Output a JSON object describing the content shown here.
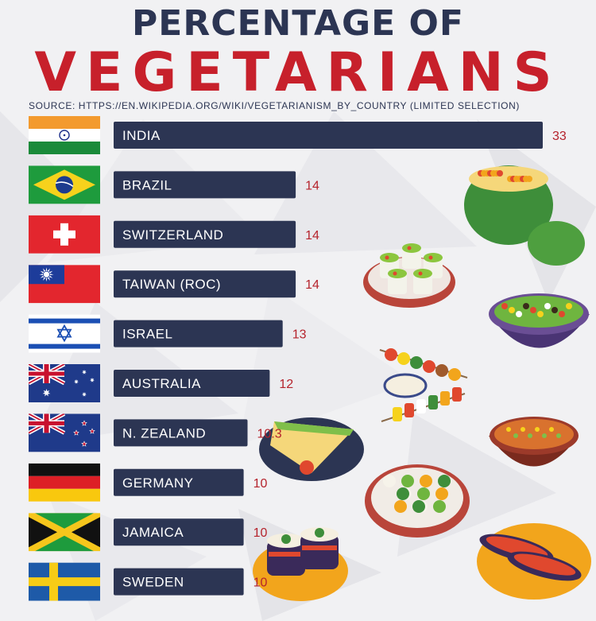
{
  "header": {
    "title_line1": "PERCENTAGE OF",
    "title_line2": "VEGETARIANS",
    "source": "SOURCE: HTTPS://EN.WIKIPEDIA.ORG/WIKI/VEGETARIANISM_BY_COUNTRY (LIMITED SELECTION)"
  },
  "colors": {
    "bar": "#2c3553",
    "value_text": "#b5232c",
    "title_dark": "#2c3553",
    "title_red": "#c7202b"
  },
  "chart_data": {
    "type": "bar",
    "orientation": "horizontal",
    "title": "PERCENTAGE OF VEGETARIANS",
    "xlabel": "",
    "ylabel": "",
    "categories": [
      "INDIA",
      "BRAZIL",
      "SWITZERLAND",
      "TAIWAN (ROC)",
      "ISRAEL",
      "AUSTRALIA",
      "N. ZEALAND",
      "GERMANY",
      "JAMAICA",
      "SWEDEN"
    ],
    "values": [
      33,
      14,
      14,
      14,
      13,
      12,
      10.3,
      10,
      10,
      10
    ],
    "value_labels": [
      "33",
      "14",
      "14",
      "14",
      "13",
      "12",
      "10.3",
      "10",
      "10",
      "10"
    ],
    "flags": [
      "india-flag-icon",
      "brazil-flag-icon",
      "switzerland-flag-icon",
      "taiwan-flag-icon",
      "israel-flag-icon",
      "australia-flag-icon",
      "new-zealand-flag-icon",
      "germany-flag-icon",
      "jamaica-flag-icon",
      "sweden-flag-icon"
    ],
    "grid": false,
    "legend": "none"
  },
  "food_icons": [
    "pumpkin-bowl-icon",
    "vegetable-rolls-icon",
    "salad-bowl-icon",
    "kebab-skewers-icon",
    "quiche-slice-icon",
    "soup-bowl-icon",
    "vegetable-plate-icon",
    "eggplant-rolls-icon",
    "stuffed-eggplant-icon"
  ]
}
